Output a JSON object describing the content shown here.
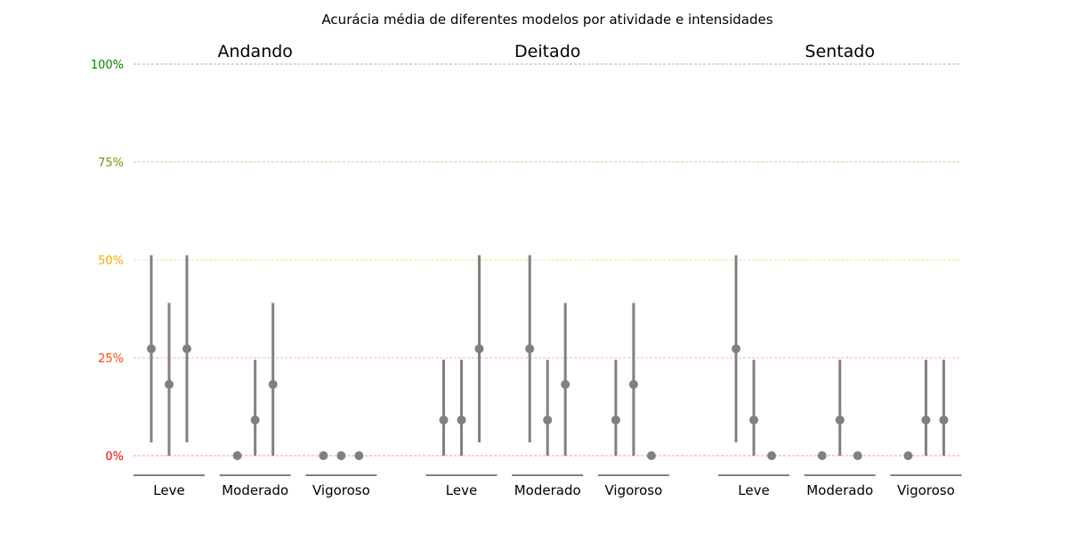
{
  "chart_data": {
    "type": "scatter",
    "title": "Acurácia média de diferentes modelos por atividade e intensidades",
    "ylim": [
      0,
      100
    ],
    "yticks": [
      {
        "value": 0,
        "label": "0%",
        "color": "#ff0000"
      },
      {
        "value": 25,
        "label": "25%",
        "color": "#ff4500"
      },
      {
        "value": 50,
        "label": "50%",
        "color": "#ffa500"
      },
      {
        "value": 75,
        "label": "75%",
        "color": "#6b9a00"
      },
      {
        "value": 100,
        "label": "100%",
        "color": "#008000"
      }
    ],
    "grid": true,
    "marker_color": "#808080",
    "panels": [
      {
        "title": "Andando",
        "groups": [
          {
            "label": "Leve",
            "points": [
              {
                "mean": 27.3,
                "low": 3.4,
                "high": 51.2
              },
              {
                "mean": 18.2,
                "low": 0,
                "high": 39.0
              },
              {
                "mean": 27.3,
                "low": 3.4,
                "high": 51.2
              }
            ]
          },
          {
            "label": "Moderado",
            "points": [
              {
                "mean": 0,
                "low": 0,
                "high": 0
              },
              {
                "mean": 9.1,
                "low": 0,
                "high": 24.5
              },
              {
                "mean": 18.2,
                "low": 0,
                "high": 39.0
              }
            ]
          },
          {
            "label": "Vigoroso",
            "points": [
              {
                "mean": 0,
                "low": 0,
                "high": 0
              },
              {
                "mean": 0,
                "low": 0,
                "high": 0
              },
              {
                "mean": 0,
                "low": 0,
                "high": 0
              }
            ]
          }
        ]
      },
      {
        "title": "Deitado",
        "groups": [
          {
            "label": "Leve",
            "points": [
              {
                "mean": 9.1,
                "low": 0,
                "high": 24.5
              },
              {
                "mean": 9.1,
                "low": 0,
                "high": 24.5
              },
              {
                "mean": 27.3,
                "low": 3.4,
                "high": 51.2
              }
            ]
          },
          {
            "label": "Moderado",
            "points": [
              {
                "mean": 27.3,
                "low": 3.4,
                "high": 51.2
              },
              {
                "mean": 9.1,
                "low": 0,
                "high": 24.5
              },
              {
                "mean": 18.2,
                "low": 0,
                "high": 39.0
              }
            ]
          },
          {
            "label": "Vigoroso",
            "points": [
              {
                "mean": 9.1,
                "low": 0,
                "high": 24.5
              },
              {
                "mean": 18.2,
                "low": 0,
                "high": 39.0
              },
              {
                "mean": 0,
                "low": 0,
                "high": 0
              }
            ]
          }
        ]
      },
      {
        "title": "Sentado",
        "groups": [
          {
            "label": "Leve",
            "points": [
              {
                "mean": 27.3,
                "low": 3.4,
                "high": 51.2
              },
              {
                "mean": 9.1,
                "low": 0,
                "high": 24.5
              },
              {
                "mean": 0,
                "low": 0,
                "high": 0
              }
            ]
          },
          {
            "label": "Moderado",
            "points": [
              {
                "mean": 0,
                "low": 0,
                "high": 0
              },
              {
                "mean": 9.1,
                "low": 0,
                "high": 24.5
              },
              {
                "mean": 0,
                "low": 0,
                "high": 0
              }
            ]
          },
          {
            "label": "Vigoroso",
            "points": [
              {
                "mean": 0,
                "low": 0,
                "high": 0
              },
              {
                "mean": 9.1,
                "low": 0,
                "high": 24.5
              },
              {
                "mean": 9.1,
                "low": 0,
                "high": 24.5
              }
            ]
          }
        ]
      }
    ]
  }
}
